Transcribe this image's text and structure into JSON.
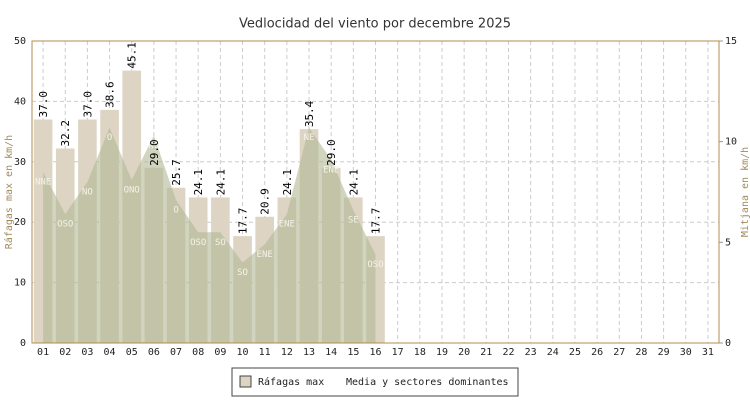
{
  "chart_data": {
    "type": "bar",
    "title": "Vedlocidad del viento por decembre 2025",
    "y_label": "Ráfagas max en km/h",
    "y2_label": "Mitjana en km/h",
    "categories": [
      "01",
      "02",
      "03",
      "04",
      "05",
      "06",
      "07",
      "08",
      "09",
      "10",
      "11",
      "12",
      "13",
      "14",
      "15",
      "16",
      "17",
      "18",
      "19",
      "20",
      "21",
      "22",
      "23",
      "24",
      "25",
      "26",
      "27",
      "28",
      "29",
      "30",
      "31"
    ],
    "ylim": [
      0,
      50
    ],
    "yticks": [
      0,
      10,
      20,
      30,
      40,
      50
    ],
    "y2lim": [
      0,
      15
    ],
    "y2ticks": [
      0,
      5,
      10,
      15
    ],
    "grid": true,
    "series": [
      {
        "name": "Ráfagas max",
        "color": "#ddd4c4",
        "values": [
          37.0,
          32.2,
          37.0,
          38.6,
          45.1,
          29.0,
          25.7,
          24.1,
          24.1,
          17.7,
          20.9,
          24.1,
          35.4,
          29.0,
          24.1,
          17.7,
          null,
          null,
          null,
          null,
          null,
          null,
          null,
          null,
          null,
          null,
          null,
          null,
          null,
          null,
          null
        ],
        "value_labels": [
          "37.0",
          "32.2",
          "37.0",
          "38.6",
          "45.1",
          "29.0",
          "25.7",
          "24.1",
          "24.1",
          "17.7",
          "20.9",
          "24.1",
          "35.4",
          "29.0",
          "24.1",
          "17.7",
          null,
          null,
          null,
          null,
          null,
          null,
          null,
          null,
          null,
          null,
          null,
          null,
          null,
          null,
          null
        ]
      },
      {
        "name": "Media y sectores dominantes",
        "color": "#b3b994",
        "axis": "y2",
        "values": [
          8.5,
          6.4,
          8.0,
          10.7,
          8.1,
          10.3,
          7.1,
          5.5,
          5.5,
          4.0,
          4.9,
          6.4,
          10.7,
          9.1,
          6.6,
          4.4,
          null,
          null,
          null,
          null,
          null,
          null,
          null,
          null,
          null,
          null,
          null,
          null,
          null,
          null,
          null
        ],
        "sectors": [
          "NNE",
          "OSO",
          "NO",
          "O",
          "ONO",
          "NO",
          "O",
          "OSO",
          "SO",
          "SO",
          "ENE",
          "ENE",
          "NE",
          "ENE",
          "SE",
          "OSO",
          null,
          null,
          null,
          null,
          null,
          null,
          null,
          null,
          null,
          null,
          null,
          null,
          null,
          null,
          null
        ]
      }
    ]
  }
}
